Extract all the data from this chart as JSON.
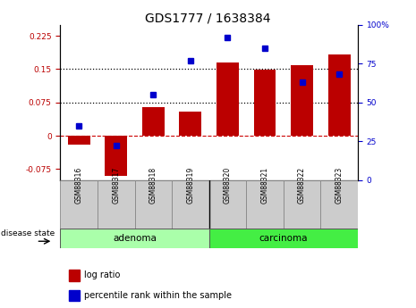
{
  "title": "GDS1777 / 1638384",
  "samples": [
    "GSM88316",
    "GSM88317",
    "GSM88318",
    "GSM88319",
    "GSM88320",
    "GSM88321",
    "GSM88322",
    "GSM88323"
  ],
  "log_ratios": [
    -0.02,
    -0.09,
    0.065,
    0.055,
    0.165,
    0.148,
    0.158,
    0.182
  ],
  "percentile_ranks": [
    35,
    22,
    55,
    77,
    92,
    85,
    63,
    68
  ],
  "group_colors": {
    "adenoma": "#AAFFAA",
    "carcinoma": "#44EE44"
  },
  "bar_color": "#BB0000",
  "dot_color": "#0000CC",
  "ylim_left": [
    -0.1,
    0.25
  ],
  "ylim_right": [
    0,
    100
  ],
  "yticks_left": [
    -0.075,
    0,
    0.075,
    0.15,
    0.225
  ],
  "yticks_right": [
    0,
    25,
    50,
    75,
    100
  ],
  "hlines": [
    0.075,
    0.15
  ],
  "zero_line_color": "#CC0000",
  "bg_color": "#FFFFFF",
  "plot_bg": "#FFFFFF",
  "title_fontsize": 10,
  "tick_fontsize": 6.5,
  "legend_fontsize": 7
}
